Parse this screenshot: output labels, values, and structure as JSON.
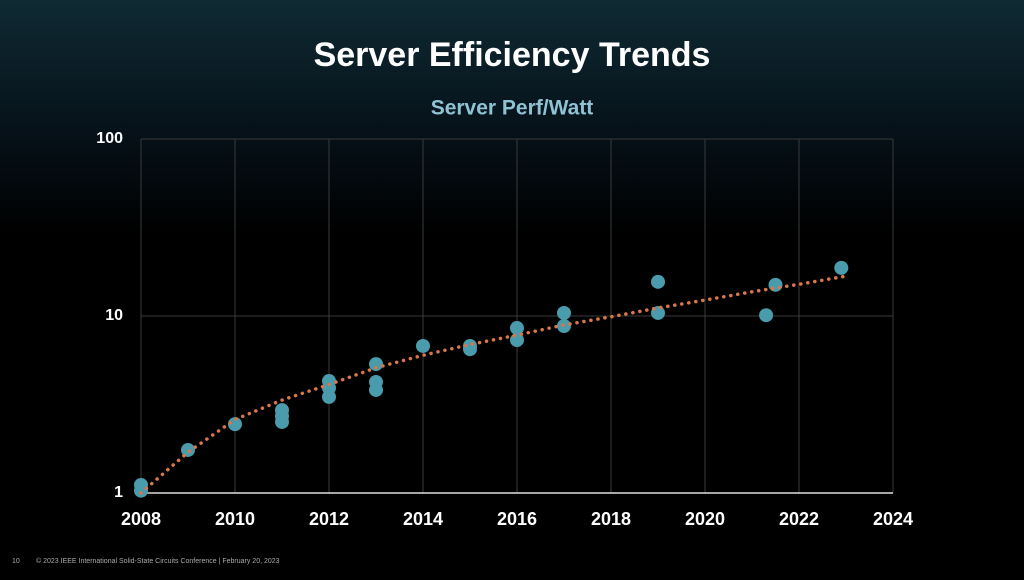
{
  "slide": {
    "title": "Server Efficiency Trends",
    "page_number": "10",
    "footer": "© 2023 IEEE International Solid-State Circuits Conference  |  February 20, 2023"
  },
  "chart_data": {
    "type": "scatter",
    "title": "Server Perf/Watt",
    "log_y": true,
    "grid": true,
    "xlim": [
      2008,
      2024
    ],
    "xticks": [
      2008,
      2010,
      2012,
      2014,
      2016,
      2018,
      2020,
      2022,
      2024
    ],
    "ylim": [
      1,
      100
    ],
    "yticks": [
      1,
      10,
      100
    ],
    "series": [
      {
        "type": "scatter",
        "color": "#4a9bab",
        "x": [
          2008,
          2008,
          2009,
          2010,
          2011,
          2011,
          2011,
          2012,
          2012,
          2012,
          2013,
          2013,
          2013,
          2014,
          2015,
          2015,
          2016,
          2016,
          2017,
          2017,
          2019,
          2019,
          2021.3,
          2021.5,
          2022.9
        ],
        "values": [
          1.11,
          1.03,
          1.75,
          2.45,
          2.94,
          2.72,
          2.52,
          4.29,
          3.92,
          3.49,
          5.35,
          4.24,
          3.82,
          6.77,
          6.77,
          6.5,
          8.55,
          7.31,
          10.4,
          8.78,
          15.6,
          10.4,
          10.1,
          15.0,
          18.7
        ]
      },
      {
        "type": "line",
        "color": "#d9774a",
        "dash": "dotted",
        "x": [
          2008,
          2009,
          2010,
          2011,
          2012,
          2013,
          2014,
          2015,
          2016,
          2017,
          2018,
          2019,
          2020,
          2021,
          2022,
          2023
        ],
        "values": [
          1,
          1.7,
          2.6,
          3.35,
          4.1,
          5.1,
          6.0,
          6.9,
          7.8,
          8.9,
          9.9,
          11.1,
          12.3,
          13.7,
          15.1,
          16.8
        ]
      }
    ]
  }
}
